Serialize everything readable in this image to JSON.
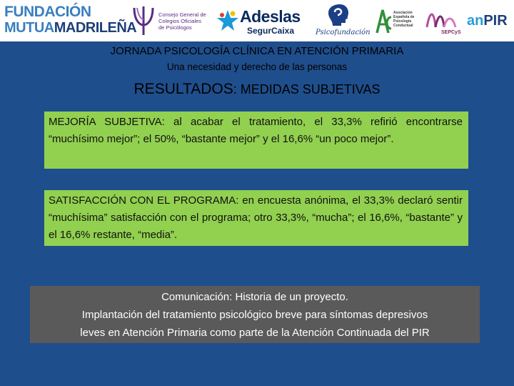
{
  "logos": {
    "fundacion_line1": "FUNDACIÓN",
    "fundacion_line2a": "MUTUA",
    "fundacion_line2b": "MADRILEÑA",
    "cgcop_line1": "Consejo General de",
    "cgcop_line2": "Colegios Oficiales",
    "cgcop_line3": "de Psicólogos",
    "adeslas_name": "Adeslas",
    "adeslas_sub": "SegurCaixa",
    "psicofundacion": "Psicofundación",
    "aepc_line1": "Asociación",
    "aepc_line2": "Española de",
    "aepc_line3": "Psicología",
    "aepc_line4": "Conductual",
    "sepcys": "SEPCyS",
    "anpir_a": "an",
    "anpir_b": "PIR"
  },
  "slide": {
    "title": "JORNADA PSICOLOGÍA CLÍNICA EN ATENCIÓN PRIMARIA",
    "subtitle": "Una necesidad y derecho de las personas",
    "heading_big": "RESULTADOS",
    "heading_small": ": MEDIDAS SUBJETIVAS",
    "box1_text": "MEJORÍA SUBJETIVA: al acabar el tratamiento, el 33,3% refirió encontrarse “muchísimo mejor”; el 50%, “bastante mejor” y el 16,6% “un poco mejor”.",
    "box2_text": "SATISFACCIÓN CON EL PROGRAMA: en encuesta anónima, el 33,3% declaró sentir “muchísima” satisfacción con el programa; otro 33,3%, “mucha”; el 16,6%, “bastante” y el 16,6% restante, “media”.",
    "footer_line1": "Comunicación: Historia de un proyecto.",
    "footer_line2": "Implantación del tratamiento psicológico breve para síntomas depresivos",
    "footer_line3": "leves en Atención Primaria como parte de la Atención Continuada del PIR"
  },
  "colors": {
    "background": "#1f4e8c",
    "green_box": "#92d050",
    "grey_box": "#5a5a5a"
  }
}
